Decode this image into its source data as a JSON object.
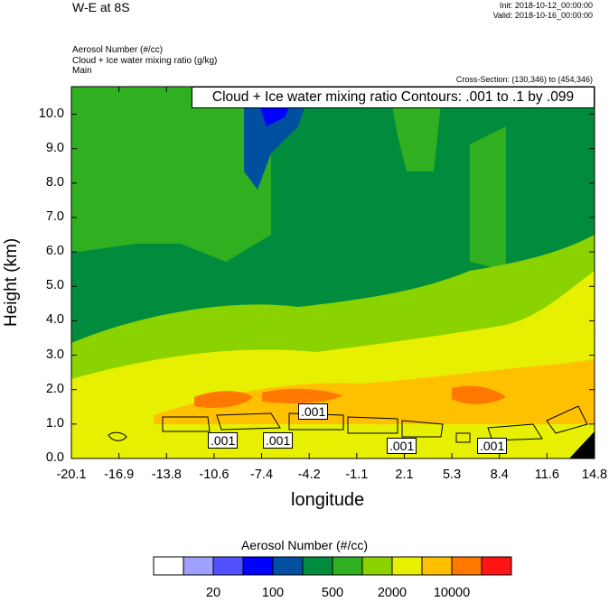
{
  "header": {
    "title": "W-E at 8S",
    "init": "Init: 2018-10-12_00:00:00",
    "valid": "Valid: 2018-10-16_00:00:00",
    "field1": "Aerosol Number   (#/cc)",
    "field2": "Cloud + Ice water mixing ratio   (g/kg)",
    "field3": "Main",
    "cross_section": "Cross-Section: (130,346) to (454,346)",
    "contour_info": "Cloud + Ice water mixing ratio Contours: .001 to .1 by .099"
  },
  "chart_data": {
    "type": "heatmap",
    "xlabel": "longitude",
    "ylabel": "Height (km)",
    "xlim": [
      -20.1,
      14.8
    ],
    "ylim": [
      0.0,
      10.8
    ],
    "x_ticks": [
      "-20.1",
      "-16.9",
      "-13.8",
      "-10.6",
      "-7.4",
      "-4.2",
      "-1.1",
      "2.1",
      "5.3",
      "8.4",
      "11.6",
      "14.8"
    ],
    "y_ticks": [
      "0.0",
      "1.0",
      "2.0",
      "3.0",
      "4.0",
      "5.0",
      "6.0",
      "7.0",
      "8.0",
      "9.0",
      "10.0"
    ],
    "y_tick_values": [
      0,
      1,
      2,
      3,
      4,
      5,
      6,
      7,
      8,
      9,
      10
    ],
    "contour_labels": [
      ".001",
      ".001",
      ".001",
      ".001",
      ".001"
    ],
    "colorbar": {
      "title": "Aerosol Number  (#/cc)",
      "colors": [
        "#ffffff",
        "#a0a0ff",
        "#5050ff",
        "#0000ff",
        "#0050a0",
        "#008c3c",
        "#30b020",
        "#8ad200",
        "#e6f000",
        "#ffc000",
        "#ff7800",
        "#ff1414"
      ],
      "labels": [
        "20",
        "100",
        "500",
        "2000",
        "10000"
      ]
    }
  }
}
